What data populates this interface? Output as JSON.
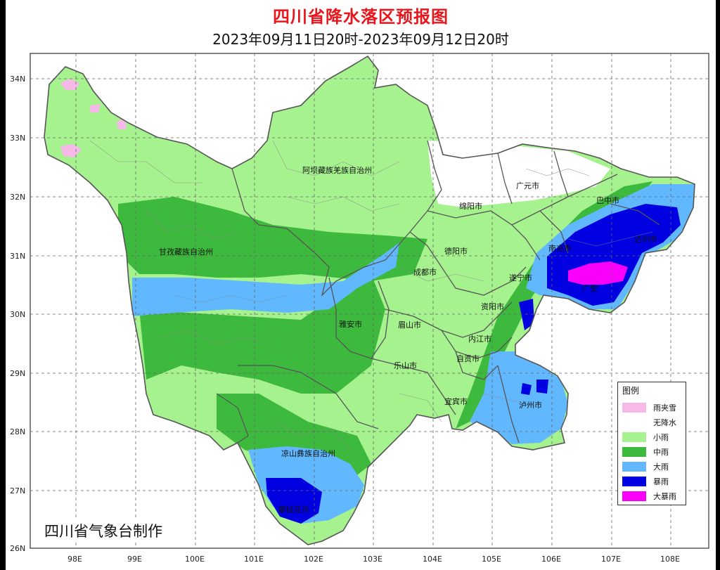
{
  "title": "四川省降水落区预报图",
  "subtitle": "2023年09月11日20时-2023年09月12日20时",
  "credit": "四川省气象台制作",
  "axes": {
    "lat_labels": [
      "34N",
      "33N",
      "32N",
      "31N",
      "30N",
      "29N",
      "28N",
      "27N",
      "26N"
    ],
    "lon_labels": [
      "98E",
      "99E",
      "100E",
      "101E",
      "102E",
      "103E",
      "104E",
      "105E",
      "106E",
      "107E",
      "108E"
    ]
  },
  "regions": {
    "aba": "阿坝藏族羌族自治州",
    "ganzi": "甘孜藏族自治州",
    "liangshan": "凉山彝族自治州"
  },
  "cities": {
    "guangyuan": "广元市",
    "bazhong": "巴中市",
    "mianyang": "绵阳市",
    "dazhou": "达州市",
    "nanchong": "南充市",
    "deyang": "德阳市",
    "chengdu": "成都市",
    "suining": "遂宁市",
    "guangan": "广安",
    "ziyang": "资阳市",
    "yaan": "雅安市",
    "meishan": "眉山市",
    "neijiang": "内江市",
    "zigong": "自贡市",
    "leshan": "乐山市",
    "yibin": "宜宾市",
    "luzhou": "泸州市",
    "xichang": "攀枝花市"
  },
  "legend": {
    "title": "图例",
    "items": [
      {
        "label": "雨夹雪",
        "color": "#f7b9e8"
      },
      {
        "label": "无降水",
        "color": "#ffffff"
      },
      {
        "label": "小雨",
        "color": "#a6f28f"
      },
      {
        "label": "中雨",
        "color": "#3dba3d"
      },
      {
        "label": "大雨",
        "color": "#61b8ff"
      },
      {
        "label": "暴雨",
        "color": "#0000e1"
      },
      {
        "label": "大暴雨",
        "color": "#fa00fa"
      }
    ]
  }
}
